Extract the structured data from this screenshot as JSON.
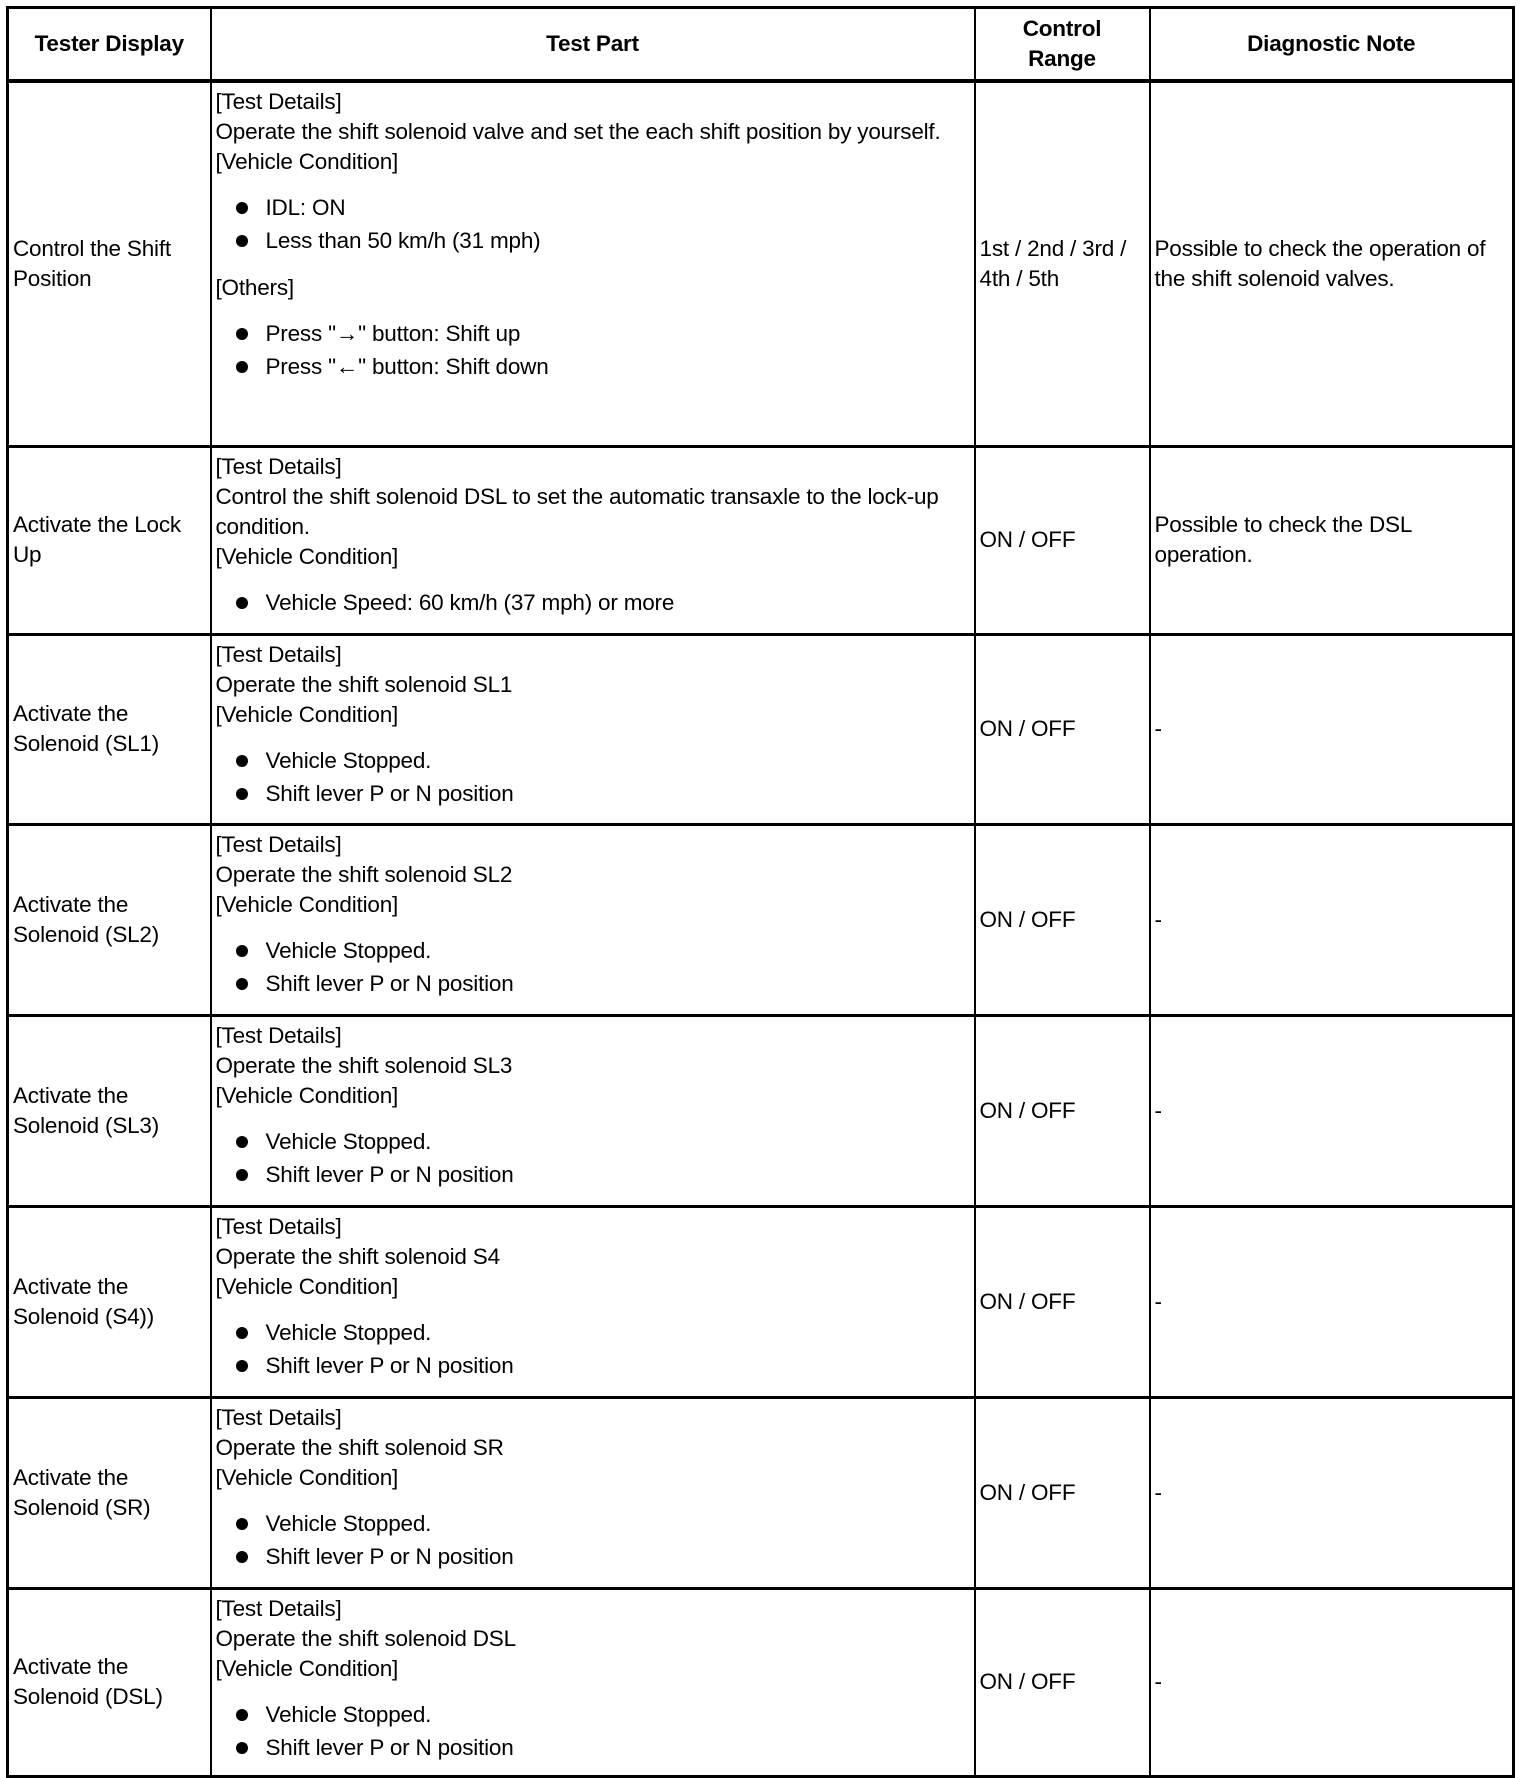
{
  "headers": [
    "Tester Display",
    "Test Part",
    "Control Range",
    "Diagnostic Note"
  ],
  "rows": [
    {
      "display": "Control the Shift Position",
      "test_details_label": "[Test Details]",
      "test_details": "Operate the shift solenoid valve and set the each shift position by yourself.",
      "vehicle_condition_label": "[Vehicle Condition]",
      "conditions": [
        "IDL: ON",
        "Less than 50 km/h (31 mph)"
      ],
      "others_label": "[Others]",
      "others": [
        "Press \"→\" button: Shift up",
        "Press \"←\" button: Shift down"
      ],
      "range": "1st / 2nd / 3rd / 4th / 5th",
      "note": "Possible to check the operation of the shift solenoid valves."
    },
    {
      "display": "Activate the Lock Up",
      "test_details_label": "[Test Details]",
      "test_details": "Control the shift solenoid DSL to set the automatic transaxle to the lock-up condition.",
      "vehicle_condition_label": "[Vehicle Condition]",
      "conditions": [
        "Vehicle Speed: 60 km/h (37 mph) or more"
      ],
      "range": "ON / OFF",
      "note": "Possible to check the DSL operation."
    },
    {
      "display": "Activate the Solenoid (SL1)",
      "test_details_label": "[Test Details]",
      "test_details": "Operate the shift solenoid SL1",
      "vehicle_condition_label": "[Vehicle Condition]",
      "conditions": [
        "Vehicle Stopped.",
        "Shift lever P or N position"
      ],
      "range": "ON / OFF",
      "note": "-"
    },
    {
      "display": "Activate the Solenoid (SL2)",
      "test_details_label": "[Test Details]",
      "test_details": "Operate the shift solenoid SL2",
      "vehicle_condition_label": "[Vehicle Condition]",
      "conditions": [
        "Vehicle Stopped.",
        "Shift lever P or N position"
      ],
      "range": "ON / OFF",
      "note": "-"
    },
    {
      "display": "Activate the Solenoid (SL3)",
      "test_details_label": "[Test Details]",
      "test_details": "Operate the shift solenoid SL3",
      "vehicle_condition_label": "[Vehicle Condition]",
      "conditions": [
        "Vehicle Stopped.",
        "Shift lever P or N position"
      ],
      "range": "ON / OFF",
      "note": "-"
    },
    {
      "display": "Activate the Solenoid (S4))",
      "test_details_label": "[Test Details]",
      "test_details": "Operate the shift solenoid S4",
      "vehicle_condition_label": "[Vehicle Condition]",
      "conditions": [
        "Vehicle Stopped.",
        "Shift lever P or N position"
      ],
      "range": "ON / OFF",
      "note": "-"
    },
    {
      "display": "Activate the Solenoid (SR)",
      "test_details_label": "[Test Details]",
      "test_details": "Operate the shift solenoid SR",
      "vehicle_condition_label": "[Vehicle Condition]",
      "conditions": [
        "Vehicle Stopped.",
        "Shift lever P or N position"
      ],
      "range": "ON / OFF",
      "note": "-"
    },
    {
      "display": "Activate the Solenoid (DSL)",
      "test_details_label": "[Test Details]",
      "test_details": "Operate the shift solenoid DSL",
      "vehicle_condition_label": "[Vehicle Condition]",
      "conditions": [
        "Vehicle Stopped.",
        "Shift lever P or N position"
      ],
      "range": "ON / OFF",
      "note": "-"
    }
  ]
}
